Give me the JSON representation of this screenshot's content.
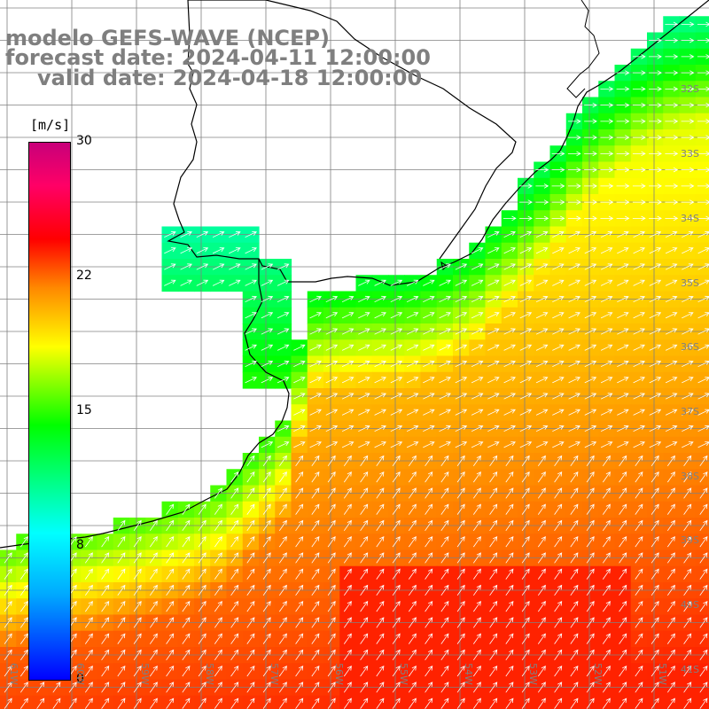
{
  "header": {
    "model": "modelo GEFS-WAVE (NCEP)",
    "forecast": "forecast date: 2024-04-11 12:00:00",
    "valid": "valid date: 2024-04-18 12:00:00"
  },
  "colorbar": {
    "unit": "[m/s]",
    "ticks": [
      "30",
      "22",
      "15",
      "8",
      "0"
    ],
    "stops": [
      "#0000ff",
      "#00aaff",
      "#00ffff",
      "#00ff00",
      "#ffff00",
      "#ff8800",
      "#ff0000",
      "#c8007a"
    ]
  },
  "grid": {
    "lat_labels": [
      "32S",
      "33S",
      "34S",
      "35S",
      "36S",
      "37S",
      "38S",
      "39S",
      "40S",
      "41S"
    ],
    "lon_labels": [
      "61W",
      "60W",
      "59W",
      "58W",
      "57W",
      "56W",
      "55W",
      "54W",
      "53W",
      "52W",
      "51W"
    ]
  },
  "colors": {
    "land": "#ffffff",
    "coast": "#000000",
    "grid": "#808080",
    "arrows": "#ffffff"
  }
}
